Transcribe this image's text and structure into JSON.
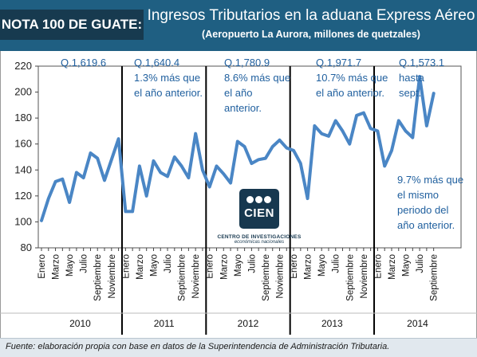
{
  "header": {
    "badge": "NOTA 100 DE GUATE:",
    "title": "Ingresos Tributarios en la aduana Express Aéreo",
    "subtitle": "(Aeropuerto La Aurora, millones de quetzales)"
  },
  "footer": {
    "source": "Fuente: elaboración propia con base en datos de la Superintendencia de Administración Tributaria."
  },
  "logo": {
    "name": "CIEN",
    "line1": "CENTRO DE INVESTIGACIONES",
    "line2": "económicas nacionales"
  },
  "annotations": [
    {
      "lines": [
        "Q.1,619.6"
      ]
    },
    {
      "lines": [
        "Q.1,640.4",
        "1.3% más que",
        "el año anterior."
      ]
    },
    {
      "lines": [
        "Q.1,780.9",
        "8.6% más que",
        "el año",
        "anterior."
      ]
    },
    {
      "lines": [
        "Q.1,971.7",
        "10.7% más que",
        "el año anterior."
      ]
    },
    {
      "lines": [
        "Q.1,573.1",
        "hasta",
        "sept."
      ]
    },
    {
      "lines": [
        "9.7% más que",
        "el mismo",
        "periodo del",
        "año anterior."
      ]
    }
  ],
  "colors": {
    "banner": "#1f5f82",
    "badge": "#173a4f",
    "line": "#4a86c5",
    "annotation": "#1f5f9e"
  },
  "chart_data": {
    "type": "line",
    "ylim": [
      80,
      220
    ],
    "yticks": [
      80,
      100,
      120,
      140,
      160,
      180,
      200,
      220
    ],
    "grid": false,
    "years": [
      "2010",
      "2011",
      "2012",
      "2013",
      "2014"
    ],
    "month_labels": [
      "Enero",
      "Marzo",
      "Mayo",
      "Julio",
      "Septiembre",
      "Noviembre"
    ],
    "series": [
      {
        "values": [
          101,
          118,
          131,
          133,
          115,
          138,
          134,
          153,
          149,
          132,
          148,
          164,
          108,
          108,
          143,
          120,
          147,
          138,
          135,
          150,
          143,
          134,
          168,
          140,
          127,
          143,
          137,
          130,
          162,
          158,
          145,
          148,
          149,
          158,
          163,
          157,
          155,
          145,
          118,
          174,
          168,
          166,
          178,
          170,
          160,
          182,
          184,
          172,
          170,
          143,
          155,
          178,
          170,
          165,
          212,
          174,
          199
        ]
      }
    ]
  }
}
